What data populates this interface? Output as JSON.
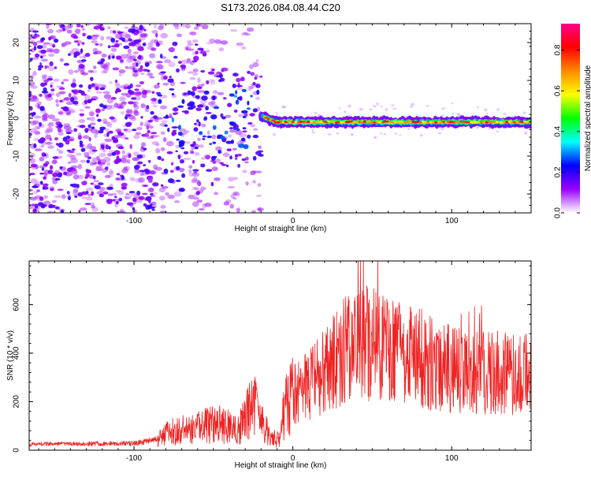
{
  "page": {
    "title": "S173.2026.084.08.44.C20"
  },
  "chart_data": [
    {
      "type": "heatmap",
      "name": "spectrogram",
      "title": "S173.2026.084.08.44.C20",
      "xlabel": "Height of straight line (km)",
      "ylabel": "Frequency (Hz)",
      "xlim": [
        -166,
        150
      ],
      "ylim": [
        -25,
        25
      ],
      "xticks": [
        -100,
        0,
        100
      ],
      "yticks": [
        -20,
        -10,
        0,
        10,
        20
      ],
      "xtick_labels": [
        "-100",
        "0",
        "100"
      ],
      "ytick_labels": [
        "-20",
        "-10",
        "0",
        "10",
        "20"
      ],
      "colorbar": {
        "label": "Normalized spectral amplitude",
        "range": [
          0,
          0.93
        ],
        "ticks": [
          0.0,
          0.2,
          0.4,
          0.6,
          0.8
        ],
        "tick_labels": [
          "0.0",
          "0.2",
          "0.4",
          "0.6",
          "0.8"
        ],
        "colors": [
          "#ffffff",
          "#9900ff",
          "#0000ff",
          "#00ffff",
          "#00ff00",
          "#ffff00",
          "#ff8800",
          "#ff0000",
          "#ff0088"
        ]
      },
      "features": {
        "noise_region_x": [
          -166,
          -20
        ],
        "signal_start_x": -20,
        "signal_center_y": -1,
        "signal_width_y": 2
      }
    },
    {
      "type": "line",
      "name": "snr",
      "xlabel": "Height of straight line (km)",
      "ylabel": "SNR (10 * v/v)",
      "xlim": [
        -166,
        150
      ],
      "ylim": [
        0,
        780
      ],
      "xticks": [
        -100,
        0,
        100
      ],
      "yticks": [
        0,
        200,
        400,
        600
      ],
      "xtick_labels": [
        "-100",
        "0",
        "100"
      ],
      "ytick_labels": [
        "0",
        "200",
        "400",
        "600"
      ],
      "color": "#ee2222",
      "trend": [
        [
          -166,
          25
        ],
        [
          -100,
          28
        ],
        [
          -85,
          45
        ],
        [
          -80,
          70
        ],
        [
          -60,
          95
        ],
        [
          -45,
          110
        ],
        [
          -35,
          75
        ],
        [
          -25,
          190
        ],
        [
          -15,
          60
        ],
        [
          -8,
          40
        ],
        [
          -5,
          200
        ],
        [
          5,
          250
        ],
        [
          20,
          320
        ],
        [
          30,
          400
        ],
        [
          40,
          430
        ],
        [
          50,
          450
        ],
        [
          60,
          400
        ],
        [
          80,
          380
        ],
        [
          100,
          330
        ],
        [
          120,
          320
        ],
        [
          150,
          310
        ]
      ]
    }
  ]
}
